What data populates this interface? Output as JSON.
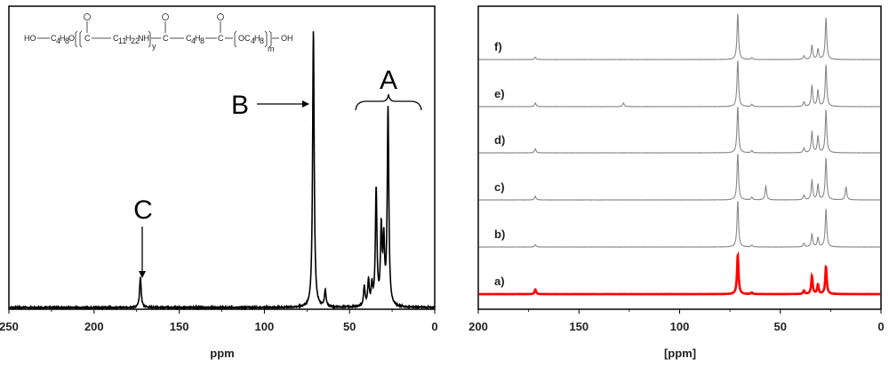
{
  "chart_data": [
    {
      "type": "line",
      "name": "left-spectrum",
      "xlabel": "ppm",
      "ylabel": "",
      "xlim": [
        250,
        0
      ],
      "x_reversed": true,
      "x_ticks": [
        "250",
        "200",
        "150",
        "100",
        "50",
        "0"
      ],
      "formula": {
        "segments": [
          "HO",
          "C",
          "4",
          "H",
          "8",
          "O",
          "C",
          "C",
          "11",
          "H",
          "22",
          "NH",
          "y",
          "C",
          "C",
          "4",
          "H",
          "8",
          "C",
          "OC",
          "4",
          "H",
          "8",
          "m",
          "OH"
        ]
      },
      "peaks": [
        {
          "ppm": 173,
          "height": 0.11
        },
        {
          "ppm": 71,
          "height": 1.0
        },
        {
          "ppm": 64,
          "height": 0.06
        },
        {
          "ppm": 41,
          "height": 0.07
        },
        {
          "ppm": 38.5,
          "height": 0.09
        },
        {
          "ppm": 36.5,
          "height": 0.07
        },
        {
          "ppm": 34,
          "height": 0.42
        },
        {
          "ppm": 31,
          "height": 0.27
        },
        {
          "ppm": 29.5,
          "height": 0.22
        },
        {
          "ppm": 27,
          "height": 0.71
        }
      ],
      "annotations": [
        {
          "label": "A",
          "ppm_range": [
            47,
            15
          ]
        },
        {
          "label": "B",
          "ppm": 71
        },
        {
          "label": "C",
          "ppm": 173
        }
      ],
      "color": "#000000"
    },
    {
      "type": "line",
      "name": "right-spectra",
      "xlabel": "[ppm]",
      "ylabel": "",
      "xlim": [
        200,
        0
      ],
      "x_reversed": true,
      "x_ticks": [
        "200",
        "150",
        "100",
        "50",
        "0"
      ],
      "series": [
        {
          "name": "a)",
          "color": "#ff0000",
          "peaks": [
            {
              "ppm": 172,
              "height": 0.12
            },
            {
              "ppm": 71,
              "height": 1.0
            },
            {
              "ppm": 64,
              "height": 0.04
            },
            {
              "ppm": 38,
              "height": 0.09
            },
            {
              "ppm": 34,
              "height": 0.46
            },
            {
              "ppm": 31,
              "height": 0.24
            },
            {
              "ppm": 27,
              "height": 0.7
            }
          ]
        },
        {
          "name": "b)",
          "color": "#888888",
          "peaks": [
            {
              "ppm": 172,
              "height": 0.05
            },
            {
              "ppm": 71,
              "height": 1.0
            },
            {
              "ppm": 64,
              "height": 0.04
            },
            {
              "ppm": 38,
              "height": 0.08
            },
            {
              "ppm": 34,
              "height": 0.28
            },
            {
              "ppm": 31,
              "height": 0.2
            },
            {
              "ppm": 27,
              "height": 0.82
            }
          ]
        },
        {
          "name": "c)",
          "color": "#888888",
          "peaks": [
            {
              "ppm": 172,
              "height": 0.08
            },
            {
              "ppm": 71,
              "height": 1.0
            },
            {
              "ppm": 64,
              "height": 0.06
            },
            {
              "ppm": 57,
              "height": 0.3
            },
            {
              "ppm": 38,
              "height": 0.1
            },
            {
              "ppm": 34,
              "height": 0.42
            },
            {
              "ppm": 31,
              "height": 0.33
            },
            {
              "ppm": 27,
              "height": 0.9
            },
            {
              "ppm": 17,
              "height": 0.28
            }
          ]
        },
        {
          "name": "d)",
          "color": "#888888",
          "peaks": [
            {
              "ppm": 172,
              "height": 0.09
            },
            {
              "ppm": 71,
              "height": 1.0
            },
            {
              "ppm": 64,
              "height": 0.05
            },
            {
              "ppm": 38,
              "height": 0.1
            },
            {
              "ppm": 34,
              "height": 0.45
            },
            {
              "ppm": 31,
              "height": 0.35
            },
            {
              "ppm": 27,
              "height": 0.92
            }
          ]
        },
        {
          "name": "e)",
          "color": "#888888",
          "peaks": [
            {
              "ppm": 172,
              "height": 0.08
            },
            {
              "ppm": 128,
              "height": 0.08
            },
            {
              "ppm": 71,
              "height": 1.0
            },
            {
              "ppm": 64,
              "height": 0.05
            },
            {
              "ppm": 38,
              "height": 0.1
            },
            {
              "ppm": 34,
              "height": 0.45
            },
            {
              "ppm": 31,
              "height": 0.35
            },
            {
              "ppm": 27,
              "height": 0.9
            }
          ]
        },
        {
          "name": "f)",
          "color": "#888888",
          "peaks": [
            {
              "ppm": 172,
              "height": 0.05
            },
            {
              "ppm": 71,
              "height": 1.0
            },
            {
              "ppm": 64,
              "height": 0.04
            },
            {
              "ppm": 38,
              "height": 0.08
            },
            {
              "ppm": 34,
              "height": 0.3
            },
            {
              "ppm": 31,
              "height": 0.22
            },
            {
              "ppm": 27,
              "height": 0.9
            }
          ]
        }
      ]
    }
  ]
}
